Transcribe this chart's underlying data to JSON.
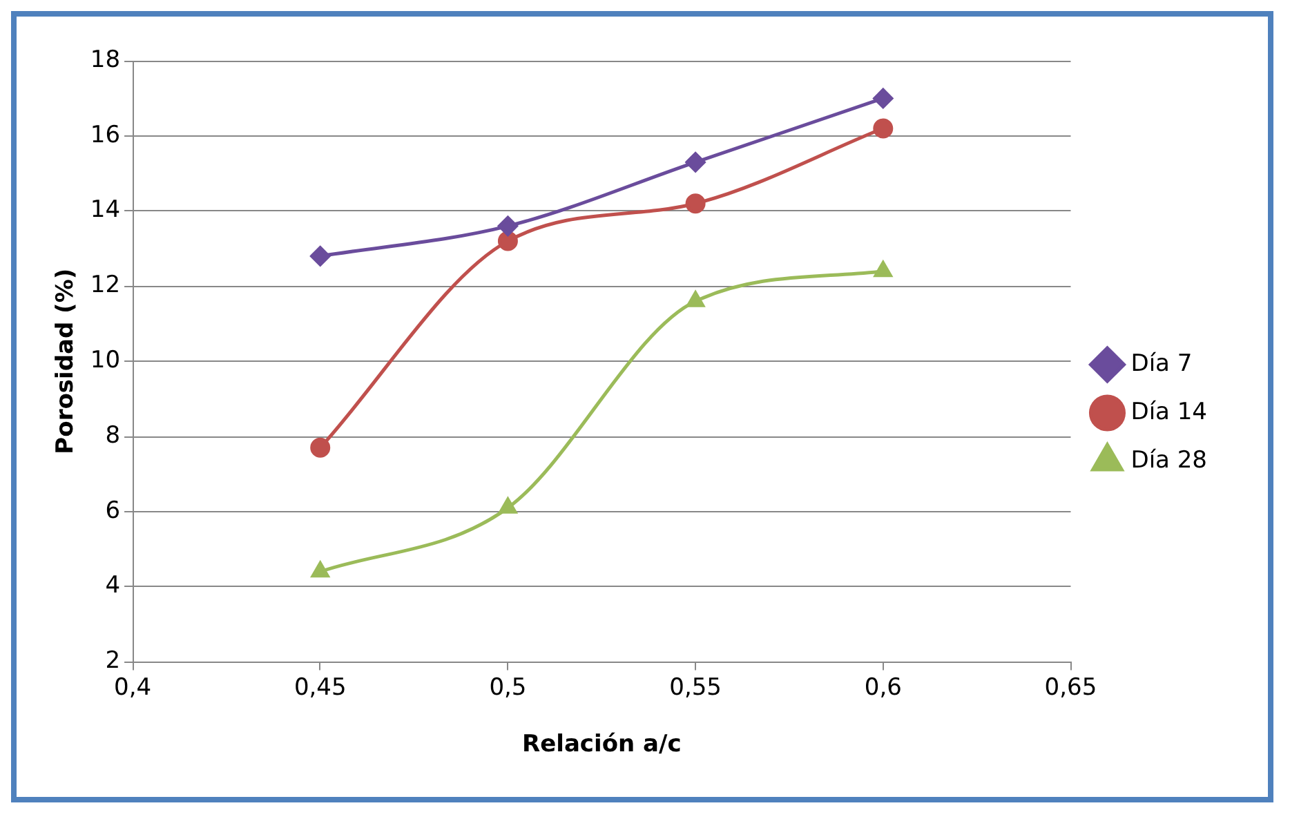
{
  "chart_data": {
    "type": "line",
    "xlabel": "Relación a/c",
    "ylabel": "Porosidad (%)",
    "xlim": [
      0.4,
      0.65
    ],
    "xticks": [
      {
        "value": 0.4,
        "label": "0,4"
      },
      {
        "value": 0.45,
        "label": "0,45"
      },
      {
        "value": 0.5,
        "label": "0,5"
      },
      {
        "value": 0.55,
        "label": "0,55"
      },
      {
        "value": 0.6,
        "label": "0,6"
      },
      {
        "value": 0.65,
        "label": "0,65"
      }
    ],
    "ylim": [
      2,
      18
    ],
    "yticks": [
      2,
      4,
      6,
      8,
      10,
      12,
      14,
      16,
      18
    ],
    "grid": "y",
    "legend": "right",
    "x": [
      0.45,
      0.5,
      0.55,
      0.6
    ],
    "series": [
      {
        "name": "Día 7",
        "color": "#6a4c9c",
        "marker": "diamond",
        "values": [
          12.8,
          13.6,
          15.3,
          17.0
        ]
      },
      {
        "name": "Día 14",
        "color": "#c0504d",
        "marker": "circle",
        "values": [
          7.7,
          13.2,
          14.2,
          16.2
        ]
      },
      {
        "name": "Día 28",
        "color": "#9bbb59",
        "marker": "triangle",
        "values": [
          4.4,
          6.1,
          11.6,
          12.4
        ]
      }
    ]
  }
}
